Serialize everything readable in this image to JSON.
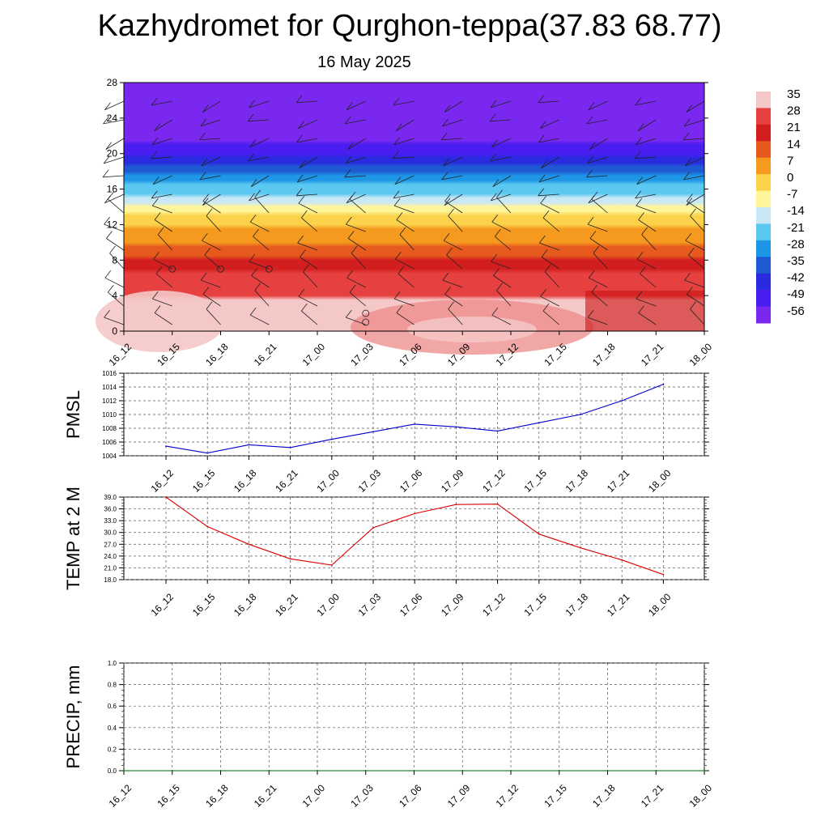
{
  "title": "Kazhydromet for Qurghon-teppa(37.83 68.77)",
  "date": "16 May 2025",
  "time_labels": [
    "16_12",
    "16_15",
    "16_18",
    "16_21",
    "17_00",
    "17_03",
    "17_06",
    "17_09",
    "17_12",
    "17_15",
    "17_18",
    "17_21",
    "18_00"
  ],
  "colors": {
    "pmsl_line": "#0000cc",
    "temp_line": "#dd0000",
    "precip_line": "#006400",
    "grid": "#555555"
  },
  "chart_data": [
    {
      "type": "heatmap",
      "name_hint": "temperature-vertical-cross-section",
      "x": [
        "16_12",
        "16_15",
        "16_18",
        "16_21",
        "17_00",
        "17_03",
        "17_06",
        "17_09",
        "17_12",
        "17_15",
        "17_18",
        "17_21",
        "18_00"
      ],
      "ylim": [
        0,
        28
      ],
      "yticks": [
        0,
        4,
        8,
        12,
        16,
        20,
        24,
        28
      ],
      "colorbar": {
        "labels": [
          "35",
          "28",
          "21",
          "14",
          "7",
          "0",
          "-7",
          "-14",
          "-21",
          "-28",
          "-35",
          "-42",
          "-49",
          "-56"
        ],
        "colors": [
          "#f5c8c8",
          "#e64040",
          "#d21e1e",
          "#e65a1e",
          "#f59a1e",
          "#fbd24a",
          "#fff59a",
          "#c8e8f5",
          "#5ac8f0",
          "#1e96e6",
          "#1e5ad2",
          "#2a2ae0",
          "#4a1ef0",
          "#7a28f0"
        ]
      },
      "level_profile": [
        {
          "height": 0,
          "value": 33
        },
        {
          "height": 4,
          "value": 28
        },
        {
          "height": 7,
          "value": 21
        },
        {
          "height": 9,
          "value": 11
        },
        {
          "height": 11,
          "value": 3
        },
        {
          "height": 13,
          "value": -5
        },
        {
          "height": 14,
          "value": -12
        },
        {
          "height": 16,
          "value": -24
        },
        {
          "height": 18,
          "value": -38
        },
        {
          "height": 20,
          "value": -50
        },
        {
          "height": 22,
          "value": -58
        },
        {
          "height": 28,
          "value": -60
        }
      ]
    },
    {
      "type": "line",
      "ylabel": "PMSL",
      "ylim": [
        1004,
        1016
      ],
      "yticks": [
        "1004",
        "1006",
        "1008",
        "1010",
        "1012",
        "1014",
        "1016"
      ],
      "x": [
        "16_12",
        "16_15",
        "16_18",
        "16_21",
        "17_00",
        "17_03",
        "17_06",
        "17_09",
        "17_12",
        "17_15",
        "17_18",
        "17_21",
        "18_00"
      ],
      "values": [
        1005.4,
        1004.4,
        1005.6,
        1005.2,
        1006.4,
        1007.5,
        1008.6,
        1008.2,
        1007.6,
        1008.8,
        1010.0,
        1012.0,
        1014.4
      ]
    },
    {
      "type": "line",
      "ylabel": "TEMP at 2 M",
      "ylim": [
        18,
        39
      ],
      "yticks": [
        "18.0",
        "21.0",
        "24.0",
        "27.0",
        "30.0",
        "33.0",
        "36.0",
        "39.0"
      ],
      "x": [
        "16_12",
        "16_15",
        "16_18",
        "16_21",
        "17_00",
        "17_03",
        "17_06",
        "17_09",
        "17_12",
        "17_15",
        "17_18",
        "17_21",
        "18_00"
      ],
      "values": [
        39.0,
        31.5,
        27.0,
        23.3,
        21.7,
        31.2,
        34.8,
        37.1,
        37.2,
        29.6,
        26.1,
        23.0,
        19.3
      ]
    },
    {
      "type": "line",
      "ylabel": "PRECIP, mm",
      "ylim": [
        0,
        1
      ],
      "yticks": [
        "0.0",
        "0.2",
        "0.4",
        "0.6",
        "0.8",
        "1.0"
      ],
      "x": [
        "16_12",
        "16_15",
        "16_18",
        "16_21",
        "17_00",
        "17_03",
        "17_06",
        "17_09",
        "17_12",
        "17_15",
        "17_18",
        "17_21",
        "18_00"
      ],
      "values": [
        0,
        0,
        0,
        0,
        0,
        0,
        0,
        0,
        0,
        0,
        0,
        0,
        0
      ]
    }
  ]
}
